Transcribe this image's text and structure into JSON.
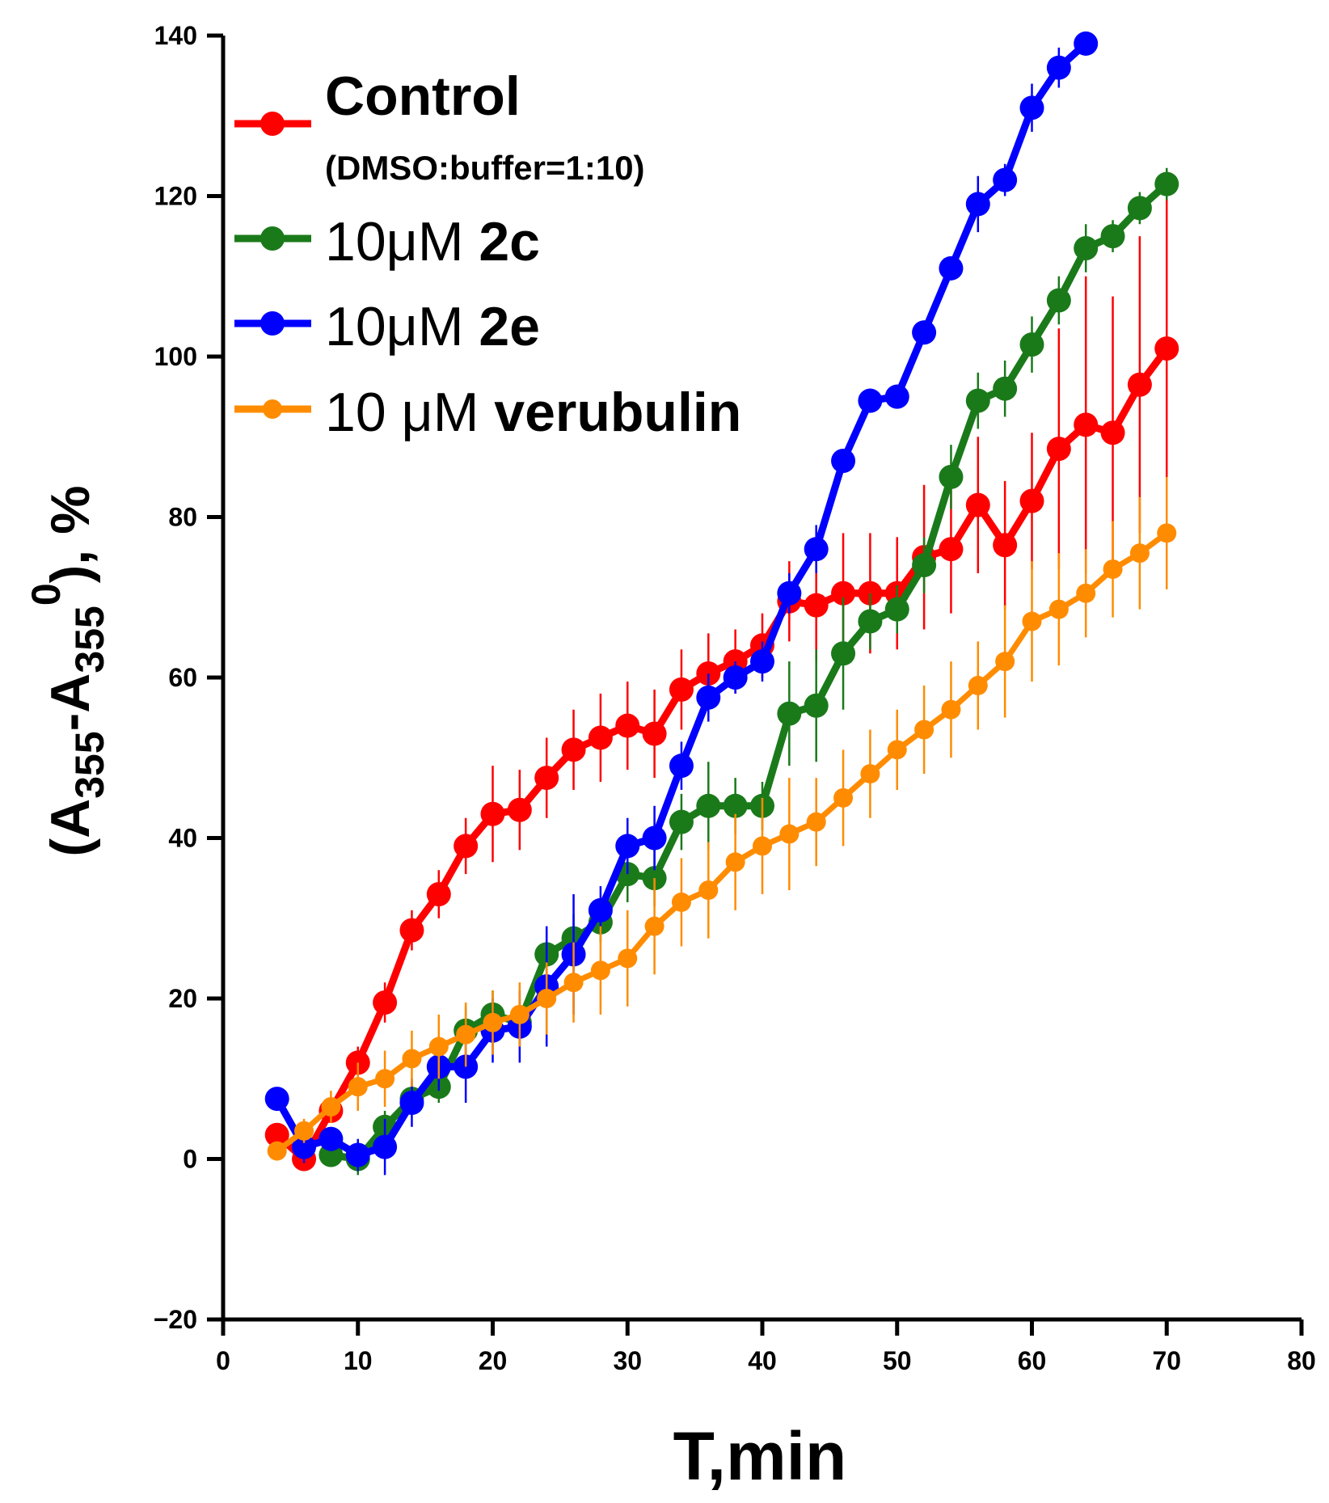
{
  "chart_data": {
    "type": "line",
    "title": "",
    "xlabel": "T,min",
    "ylabel": {
      "open": "(A",
      "sub1": "355",
      "dash": "-A",
      "sub2": "355",
      "sup": "0",
      "close": "), %"
    },
    "xlim": [
      0,
      80
    ],
    "ylim": [
      -20,
      140
    ],
    "xticks": [
      0,
      10,
      20,
      30,
      40,
      50,
      60,
      70,
      80
    ],
    "yticks": [
      -20,
      0,
      20,
      40,
      60,
      80,
      100,
      120,
      140
    ],
    "ytick_labels": [
      "−20",
      "0",
      "20",
      "40",
      "60",
      "80",
      "100",
      "120",
      "140"
    ],
    "legend_position": "top-left",
    "series": [
      {
        "name": "Control",
        "legend_main": "Control",
        "legend_sub": "(DMSO:buffer=1:10)",
        "color": "#ff0000",
        "x": [
          4,
          6,
          8,
          10,
          12,
          14,
          16,
          18,
          20,
          22,
          24,
          26,
          28,
          30,
          32,
          34,
          36,
          38,
          40,
          42,
          44,
          46,
          48,
          50,
          52,
          54,
          56,
          58,
          60,
          62,
          64,
          66,
          68,
          70
        ],
        "y": [
          3,
          0,
          6,
          12,
          19.5,
          28.5,
          33,
          39,
          43,
          43.5,
          47.5,
          51,
          52.5,
          54,
          53,
          58.5,
          60.5,
          62,
          64,
          69.5,
          69,
          70.5,
          70.5,
          70.5,
          75,
          76,
          81.5,
          76.5,
          82,
          88.5,
          91.5,
          90.5,
          96.5,
          101
        ],
        "err": [
          1,
          1,
          1.5,
          2,
          2.5,
          2.5,
          3,
          3.5,
          6,
          5,
          5,
          5,
          5.5,
          5.5,
          5.5,
          5,
          5,
          4,
          4,
          5,
          7,
          7.5,
          7.5,
          7,
          9,
          8,
          8.5,
          8,
          8.5,
          15,
          18.5,
          17,
          18.5,
          20
        ]
      },
      {
        "name": "10μM 2c",
        "legend_main": "10μM ",
        "legend_bold": "2c",
        "color": "#1a7a1a",
        "x": [
          8,
          10,
          12,
          14,
          16,
          18,
          20,
          22,
          24,
          26,
          28,
          30,
          32,
          34,
          36,
          38,
          40,
          42,
          44,
          46,
          48,
          50,
          52,
          54,
          56,
          58,
          60,
          62,
          64,
          66,
          68,
          70
        ],
        "y": [
          0.5,
          0,
          4,
          7.5,
          9,
          16,
          18,
          17,
          25.5,
          27.5,
          29.5,
          35.5,
          35,
          42,
          44,
          44,
          44,
          55.5,
          56.5,
          63,
          67,
          68.5,
          74,
          85,
          94.5,
          96,
          101.5,
          107,
          113.5,
          115,
          118.5,
          121.5
        ],
        "err": [
          1,
          2,
          2,
          2,
          2,
          3,
          3,
          3,
          3,
          3,
          2.5,
          3.5,
          3.5,
          3.5,
          5.5,
          3.5,
          3,
          6.5,
          7,
          7,
          3.5,
          3,
          3.5,
          4,
          3.5,
          3.5,
          3.5,
          3,
          3,
          2,
          2,
          2
        ]
      },
      {
        "name": "10μM 2e",
        "legend_main": "10μM ",
        "legend_bold": "2e",
        "color": "#0000ff",
        "x": [
          4,
          6,
          8,
          10,
          12,
          14,
          16,
          18,
          20,
          22,
          24,
          26,
          28,
          30,
          32,
          34,
          36,
          38,
          40,
          42,
          44,
          46,
          48,
          50,
          52,
          54,
          56,
          58,
          60,
          62,
          64
        ],
        "y": [
          7.5,
          1.5,
          2.5,
          0.5,
          1.5,
          7,
          11.5,
          11.5,
          16,
          16.5,
          21.5,
          25.5,
          31,
          39,
          40,
          49,
          57.5,
          60,
          62,
          70.5,
          76,
          87,
          94.5,
          95,
          103,
          111,
          119,
          122,
          131,
          136,
          139
        ],
        "err": [
          1,
          2,
          1.5,
          2,
          3.5,
          3,
          3,
          4.5,
          4,
          4.5,
          7.5,
          7.5,
          3,
          3.5,
          4,
          3,
          3,
          2,
          2.5,
          2.5,
          3,
          1.5,
          1.5,
          1.5,
          1.5,
          1.5,
          3.5,
          2,
          3,
          2.5,
          1.5
        ]
      },
      {
        "name": "10 μM verubulin",
        "legend_main": "10 μM ",
        "legend_bold": "verubulin",
        "color": "#ff8c00",
        "x": [
          4,
          6,
          8,
          10,
          12,
          14,
          16,
          18,
          20,
          22,
          24,
          26,
          28,
          30,
          32,
          34,
          36,
          38,
          40,
          42,
          44,
          46,
          48,
          50,
          52,
          54,
          56,
          58,
          60,
          62,
          64,
          66,
          68,
          70
        ],
        "y": [
          1,
          3.5,
          6.5,
          9,
          10,
          12.5,
          14,
          15.5,
          17,
          18,
          20,
          22,
          23.5,
          25,
          29,
          32,
          33.5,
          37,
          39,
          40.5,
          42,
          45,
          48,
          51,
          53.5,
          56,
          59,
          62,
          67,
          68.5,
          70.5,
          73.5,
          75.5,
          78
        ],
        "err": [
          1,
          1.5,
          2,
          3,
          3.5,
          3.5,
          4,
          4,
          4,
          4,
          4.5,
          5,
          5.5,
          6,
          6,
          5.5,
          6,
          6,
          6,
          7,
          5.5,
          6,
          5.5,
          5,
          5.5,
          6,
          5.5,
          7,
          7.5,
          7,
          5.5,
          6,
          7,
          7
        ]
      }
    ]
  }
}
